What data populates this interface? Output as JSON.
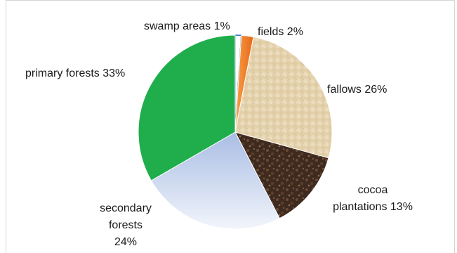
{
  "chart_data": {
    "type": "pie",
    "title": "",
    "slices": [
      {
        "label": "swamp areas",
        "value": 1,
        "display": "swamp areas 1%",
        "color": "#ffffff",
        "stroke": "#2f6fbf"
      },
      {
        "label": "fields",
        "value": 2,
        "display": "fields 2%",
        "color": "#f07a22"
      },
      {
        "label": "fallows",
        "value": 26,
        "display": "fallows 26%",
        "color": "#e6d2ac"
      },
      {
        "label": "cocoa plantations",
        "value": 13,
        "display_lines": [
          "cocoa",
          "plantations 13%"
        ],
        "color": "#4a3426"
      },
      {
        "label": "secondary forests",
        "value": 24,
        "display_lines": [
          "secondary",
          "forests",
          "24%"
        ],
        "color": "#b9c9e6"
      },
      {
        "label": "primary forests",
        "value": 33,
        "display": "primary forests 33%",
        "color": "#1fae4b"
      }
    ],
    "legend": "none (data labels next to slices)",
    "start_angle": "12 o'clock, clockwise"
  }
}
